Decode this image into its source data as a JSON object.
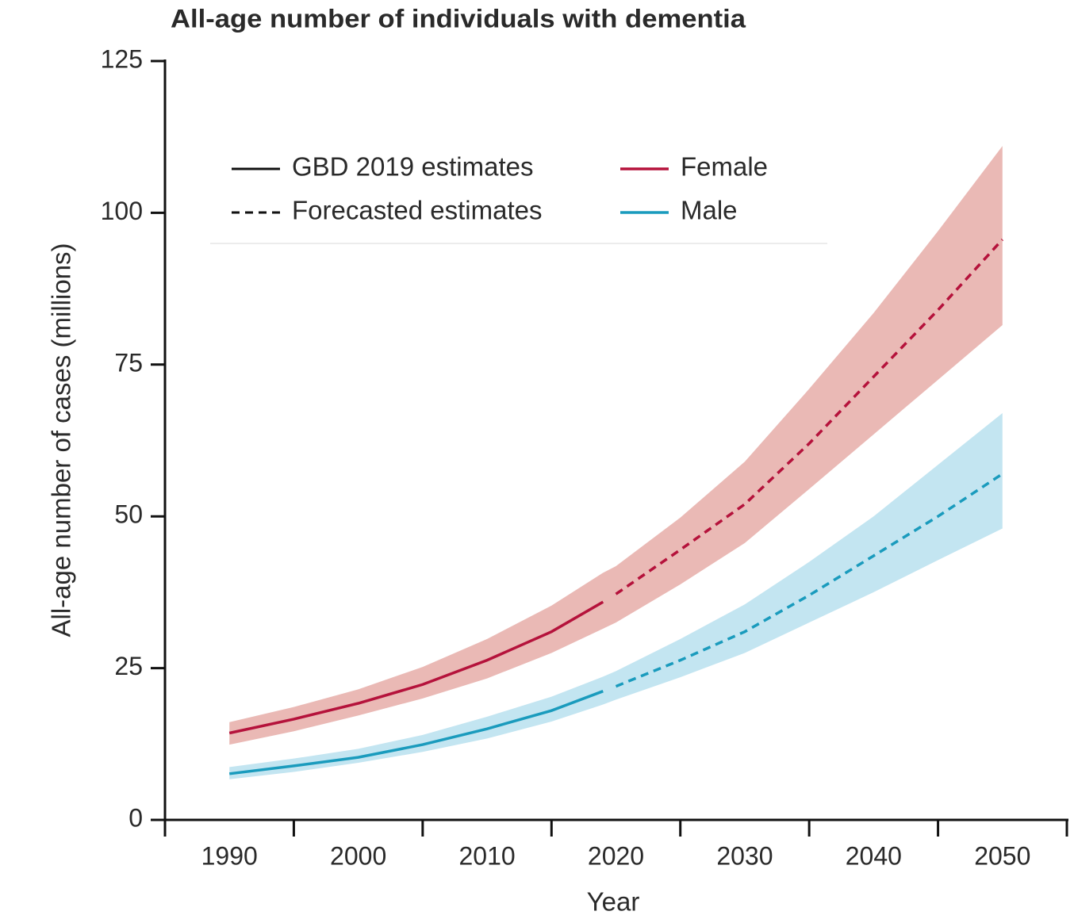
{
  "chart_data": {
    "type": "line",
    "title": "All-age number of individuals with dementia",
    "x_label": "Year",
    "y_label": "All-age number of cases (millions)",
    "x": [
      1990,
      1995,
      2000,
      2005,
      2010,
      2015,
      2019,
      2020,
      2025,
      2030,
      2035,
      2040,
      2045,
      2050
    ],
    "xlim": [
      1985,
      2055
    ],
    "xticks": [
      1990,
      2000,
      2010,
      2020,
      2030,
      2040,
      2050
    ],
    "xtick_marks": [
      1985,
      1995,
      2005,
      2015,
      2025,
      2035,
      2045,
      2055
    ],
    "ylim": [
      0,
      125
    ],
    "yticks": [
      0,
      25,
      50,
      75,
      100,
      125
    ],
    "grid": false,
    "line_styles": [
      {
        "name": "GBD 2019 estimates",
        "dash": false
      },
      {
        "name": "Forecasted estimates",
        "dash": true
      }
    ],
    "series": [
      {
        "name": "Female",
        "color": "#b5123b",
        "band_color": "#eab9b5",
        "values": [
          14.3,
          16.6,
          19.2,
          22.3,
          26.3,
          31.0,
          35.9,
          null,
          null,
          null,
          null,
          null,
          null,
          null
        ],
        "forecast": [
          null,
          null,
          null,
          null,
          null,
          null,
          null,
          37.2,
          44.5,
          52.0,
          62.0,
          73.0,
          84.0,
          95.6
        ],
        "upper": [
          16.1,
          18.6,
          21.5,
          25.2,
          29.8,
          35.3,
          40.7,
          41.8,
          49.8,
          59.0,
          71.0,
          83.5,
          97.0,
          111.0
        ],
        "lower": [
          12.4,
          14.6,
          17.2,
          20.0,
          23.3,
          27.5,
          31.5,
          32.5,
          38.8,
          45.6,
          54.5,
          63.5,
          72.5,
          81.5
        ]
      },
      {
        "name": "Male",
        "color": "#1a9bbd",
        "band_color": "#c3e5f1",
        "values": [
          7.6,
          8.9,
          10.3,
          12.4,
          15.0,
          18.0,
          21.2,
          null,
          null,
          null,
          null,
          null,
          null,
          null
        ],
        "forecast": [
          null,
          null,
          null,
          null,
          null,
          null,
          null,
          22.0,
          26.3,
          31.0,
          37.0,
          43.5,
          50.0,
          57.0
        ],
        "upper": [
          8.7,
          10.1,
          11.7,
          14.0,
          17.0,
          20.3,
          23.6,
          24.5,
          29.8,
          35.5,
          42.5,
          50.0,
          58.5,
          67.0
        ],
        "lower": [
          6.7,
          7.9,
          9.4,
          11.2,
          13.4,
          16.2,
          19.0,
          19.8,
          23.5,
          27.5,
          32.5,
          37.5,
          42.8,
          48.0
        ]
      }
    ]
  }
}
